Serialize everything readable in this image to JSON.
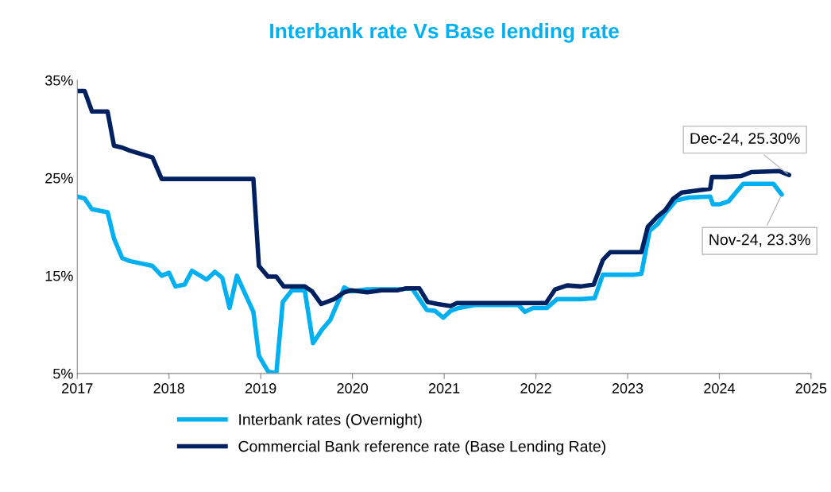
{
  "chart_data": {
    "type": "line",
    "title": "Interbank rate Vs Base lending rate",
    "xlim": [
      2017,
      2025
    ],
    "xticks": [
      2017,
      2018,
      2019,
      2020,
      2021,
      2022,
      2023,
      2024,
      2025
    ],
    "ylim": [
      5,
      35
    ],
    "yticks": [
      {
        "value": 5,
        "label": "5%"
      },
      {
        "value": 15,
        "label": "15%"
      },
      {
        "value": 25,
        "label": "25%"
      },
      {
        "value": 35,
        "label": "35%"
      }
    ],
    "grid": false,
    "legend": "bottom",
    "marker": "none",
    "line_style": "solid",
    "series": [
      {
        "name": "Interbank rates (Overnight)",
        "color": "#00b0f0",
        "x": [
          2017.0,
          2017.08,
          2017.16,
          2017.33,
          2017.4,
          2017.49,
          2017.57,
          2017.82,
          2017.92,
          2018.0,
          2018.07,
          2018.17,
          2018.25,
          2018.41,
          2018.5,
          2018.58,
          2018.66,
          2018.74,
          2018.92,
          2018.98,
          2019.08,
          2019.17,
          2019.24,
          2019.34,
          2019.48,
          2019.57,
          2019.67,
          2019.76,
          2019.91,
          2019.99,
          2020.16,
          2020.49,
          2020.65,
          2020.81,
          2020.9,
          2020.99,
          2021.07,
          2021.16,
          2021.33,
          2021.81,
          2021.88,
          2021.97,
          2022.12,
          2022.23,
          2022.49,
          2022.64,
          2022.73,
          2023.07,
          2023.15,
          2023.24,
          2023.33,
          2023.41,
          2023.53,
          2023.67,
          2023.9,
          2023.93,
          2024.0,
          2024.1,
          2024.26,
          2024.59,
          2024.68
        ],
        "values": [
          23.1,
          22.9,
          21.8,
          21.5,
          18.8,
          16.8,
          16.5,
          16.0,
          15.0,
          15.3,
          13.9,
          14.1,
          15.5,
          14.6,
          15.4,
          14.8,
          11.7,
          15.0,
          11.3,
          6.8,
          5.2,
          5.0,
          12.3,
          13.5,
          13.5,
          8.1,
          9.5,
          10.5,
          13.8,
          13.4,
          13.6,
          13.6,
          13.7,
          11.5,
          11.4,
          10.7,
          11.4,
          11.7,
          12.0,
          12.0,
          11.3,
          11.7,
          11.7,
          12.6,
          12.6,
          12.7,
          15.1,
          15.1,
          15.2,
          19.6,
          20.3,
          21.4,
          22.7,
          23.0,
          23.1,
          22.3,
          22.3,
          22.6,
          24.4,
          24.4,
          23.3
        ]
      },
      {
        "name": "Commercial Bank reference rate (Base Lending Rate)",
        "color": "#002060",
        "x": [
          2017.0,
          2017.08,
          2017.16,
          2017.33,
          2017.4,
          2017.49,
          2017.57,
          2017.82,
          2017.92,
          2018.92,
          2018.98,
          2019.08,
          2019.17,
          2019.25,
          2019.48,
          2019.56,
          2019.66,
          2019.8,
          2019.91,
          2019.99,
          2020.16,
          2020.32,
          2020.49,
          2020.58,
          2020.73,
          2020.82,
          2020.93,
          2021.07,
          2021.14,
          2021.3,
          2022.11,
          2022.21,
          2022.34,
          2022.49,
          2022.63,
          2022.73,
          2022.81,
          2023.15,
          2023.22,
          2023.33,
          2023.41,
          2023.5,
          2023.59,
          2023.9,
          2023.92,
          2024.07,
          2024.24,
          2024.35,
          2024.65,
          2024.76
        ],
        "values": [
          33.9,
          33.9,
          31.8,
          31.8,
          28.3,
          28.1,
          27.8,
          27.1,
          24.9,
          24.9,
          16.0,
          14.9,
          14.9,
          13.9,
          13.9,
          13.4,
          12.1,
          12.6,
          13.3,
          13.5,
          13.3,
          13.5,
          13.5,
          13.7,
          13.7,
          12.3,
          12.1,
          11.9,
          12.2,
          12.2,
          12.2,
          13.6,
          14.0,
          13.9,
          14.1,
          16.6,
          17.4,
          17.4,
          20.0,
          21.1,
          21.7,
          22.9,
          23.5,
          23.9,
          25.1,
          25.1,
          25.2,
          25.6,
          25.7,
          25.3
        ]
      }
    ],
    "annotations": [
      {
        "text": "Dec-24, 25.30%",
        "x": 2024.76,
        "y": 25.3
      },
      {
        "text": "Nov-24, 23.3%",
        "x": 2024.68,
        "y": 23.3
      }
    ]
  }
}
